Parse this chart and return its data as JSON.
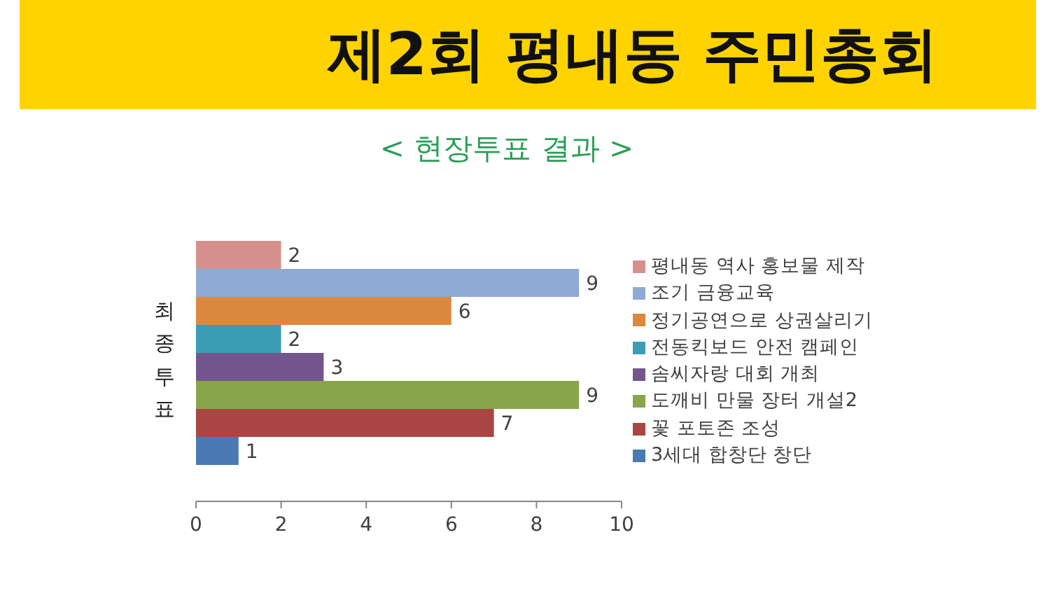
{
  "chart_data": {
    "type": "bar",
    "title": "제2회 평내동 주민총회",
    "subtitle": "< 현장투표 결과 >",
    "ylabel": "최종투표",
    "orientation": "horizontal",
    "categories": [
      null
    ],
    "series": [
      {
        "name": "평내동 역사 홍보물 제작",
        "color": "#d5908e",
        "values": [
          2
        ]
      },
      {
        "name": "조기 금융교육",
        "color": "#8faad4",
        "values": [
          9
        ]
      },
      {
        "name": "정기공연으로 상권살리기",
        "color": "#dd8841",
        "values": [
          6
        ]
      },
      {
        "name": "전동킥보드 안전 캠페인",
        "color": "#3b9db3",
        "values": [
          2
        ]
      },
      {
        "name": "솜씨자랑 대회 개최",
        "color": "#74568f",
        "values": [
          3
        ]
      },
      {
        "name": "도깨비 만물 장터 개설2",
        "color": "#88a54a",
        "values": [
          9
        ]
      },
      {
        "name": "꽃 포토존 조성",
        "color": "#a94643",
        "values": [
          7
        ]
      },
      {
        "name": "3세대 합창단 창단",
        "color": "#4a79b4",
        "values": [
          1
        ]
      }
    ],
    "xlim": [
      0,
      10
    ],
    "xticks": [
      0,
      2,
      4,
      6,
      8,
      10
    ],
    "data_labels": true,
    "legend": "right"
  }
}
